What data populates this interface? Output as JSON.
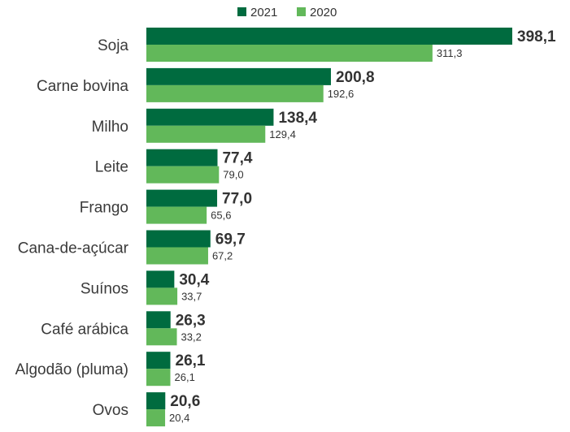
{
  "chart_data": {
    "type": "bar",
    "orientation": "horizontal",
    "categories": [
      "Soja",
      "Carne bovina",
      "Milho",
      "Leite",
      "Frango",
      "Cana-de-açúcar",
      "Suínos",
      "Café arábica",
      "Algodão (pluma)",
      "Ovos"
    ],
    "series": [
      {
        "name": "2021",
        "color": "#006b3f",
        "values": [
          398.1,
          200.8,
          138.4,
          77.4,
          77.0,
          69.7,
          30.4,
          26.3,
          26.1,
          20.6
        ],
        "labels": [
          "398,1",
          "200,8",
          "138,4",
          "77,4",
          "77,0",
          "69,7",
          "30,4",
          "26,3",
          "26,1",
          "20,6"
        ]
      },
      {
        "name": "2020",
        "color": "#62b85a",
        "values": [
          311.3,
          192.6,
          129.4,
          79.0,
          65.6,
          67.2,
          33.7,
          33.2,
          26.1,
          20.4
        ],
        "labels": [
          "311,3",
          "192,6",
          "129,4",
          "79,0",
          "65,6",
          "67,2",
          "33,7",
          "33,2",
          "26,1",
          "20,4"
        ]
      }
    ],
    "legend": {
      "position": "top",
      "entries": [
        "2021",
        "2020"
      ]
    },
    "xlim": [
      0,
      398.1
    ],
    "grid": false
  }
}
